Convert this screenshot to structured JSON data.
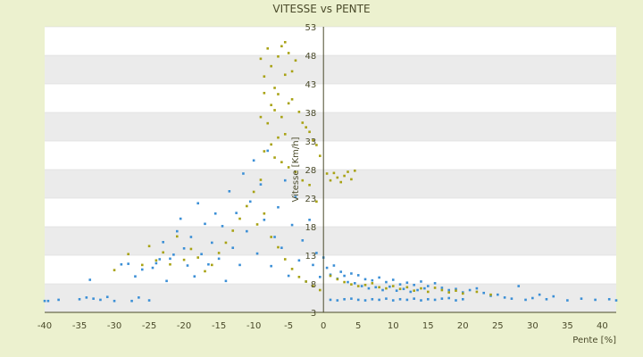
{
  "chart_data": {
    "type": "scatter",
    "title": "VITESSE vs PENTE",
    "xlabel": "Pente [%]",
    "ylabel": "Vitesse [Km/h]",
    "xlim": [
      -40,
      42
    ],
    "ylim": [
      3,
      53
    ],
    "x_ticks": [
      "-40",
      "-35",
      "-30",
      "-25",
      "-20",
      "-15",
      "-10",
      "-5",
      "0",
      "5",
      "10",
      "15",
      "20",
      "25",
      "30",
      "35",
      "40"
    ],
    "y_ticks": [
      "3",
      "8",
      "13",
      "18",
      "23",
      "28",
      "33",
      "38",
      "43",
      "48",
      "53"
    ],
    "grid": true,
    "legend": "none",
    "colors": {
      "background": "#ecf1cf",
      "plot_band_light": "#ffffff",
      "plot_band_dark": "#ebebeb",
      "axis": "#4a4a2a",
      "series_1": "#3b8fd6",
      "series_2": "#a8a214"
    },
    "series": [
      {
        "color": "#3b8fd6",
        "points": [
          [
            -40,
            5
          ],
          [
            -39.5,
            5
          ],
          [
            -38,
            5.2
          ],
          [
            -35,
            5.3
          ],
          [
            -34,
            5.6
          ],
          [
            -33.5,
            8.7
          ],
          [
            -33,
            5.4
          ],
          [
            -32,
            5.2
          ],
          [
            -31,
            5.7
          ],
          [
            -30,
            5
          ],
          [
            -29,
            11.4
          ],
          [
            -28,
            11.5
          ],
          [
            -27.5,
            5
          ],
          [
            -27,
            9.3
          ],
          [
            -26.5,
            5.6
          ],
          [
            -26,
            10.5
          ],
          [
            -25,
            5.1
          ],
          [
            -24.5,
            10.8
          ],
          [
            -24,
            11.6
          ],
          [
            -23.5,
            12.3
          ],
          [
            -23,
            15.3
          ],
          [
            -22.5,
            8.5
          ],
          [
            -22,
            12.4
          ],
          [
            -21.5,
            13.1
          ],
          [
            -21,
            17.2
          ],
          [
            -20.5,
            19.4
          ],
          [
            -20,
            14.2
          ],
          [
            -19.5,
            11.2
          ],
          [
            -19,
            16.2
          ],
          [
            -18.5,
            9.3
          ],
          [
            -18,
            22.1
          ],
          [
            -17.5,
            13.2
          ],
          [
            -17,
            18.5
          ],
          [
            -16.5,
            11.4
          ],
          [
            -16,
            15.2
          ],
          [
            -15.5,
            20.3
          ],
          [
            -15,
            12.4
          ],
          [
            -14.5,
            18.1
          ],
          [
            -14,
            8.5
          ],
          [
            -13.5,
            24.2
          ],
          [
            -13,
            14.3
          ],
          [
            -12.5,
            20.4
          ],
          [
            -12,
            11.3
          ],
          [
            -11.5,
            27.3
          ],
          [
            -11,
            17.2
          ],
          [
            -10.5,
            22.4
          ],
          [
            -10,
            29.6
          ],
          [
            -9.5,
            13.3
          ],
          [
            -9,
            25.4
          ],
          [
            -8.5,
            19.2
          ],
          [
            -8,
            31.3
          ],
          [
            -7.5,
            11.1
          ],
          [
            -7,
            16.2
          ],
          [
            -6.5,
            21.4
          ],
          [
            -6,
            14.3
          ],
          [
            -5.5,
            26.1
          ],
          [
            -5,
            9.4
          ],
          [
            -4.5,
            18.3
          ],
          [
            -4,
            23.2
          ],
          [
            -3.5,
            12.1
          ],
          [
            -3,
            15.6
          ],
          [
            -2.5,
            8.4
          ],
          [
            -2,
            19.2
          ],
          [
            -1.5,
            11.3
          ],
          [
            -1,
            13.4
          ],
          [
            -0.5,
            9.2
          ],
          [
            0,
            12.6
          ],
          [
            0.5,
            10.8
          ],
          [
            1,
            9.6
          ],
          [
            1.5,
            11.2
          ],
          [
            2,
            8.9
          ],
          [
            2.5,
            10.1
          ],
          [
            3,
            9.4
          ],
          [
            3.5,
            8.3
          ],
          [
            4,
            9.8
          ],
          [
            4.5,
            8.1
          ],
          [
            5,
            9.5
          ],
          [
            5.5,
            7.6
          ],
          [
            6,
            8.8
          ],
          [
            6.5,
            7.2
          ],
          [
            7,
            8.6
          ],
          [
            7.5,
            7.4
          ],
          [
            8,
            9.1
          ],
          [
            8.5,
            6.9
          ],
          [
            9,
            8.3
          ],
          [
            9.5,
            7.5
          ],
          [
            10,
            8.7
          ],
          [
            10.5,
            6.8
          ],
          [
            11,
            7.9
          ],
          [
            11.5,
            7.1
          ],
          [
            12,
            8.2
          ],
          [
            12.5,
            6.6
          ],
          [
            13,
            7.8
          ],
          [
            13.5,
            6.9
          ],
          [
            14,
            8.4
          ],
          [
            14.5,
            7.2
          ],
          [
            15,
            7.6
          ],
          [
            16,
            8.1
          ],
          [
            17,
            7.3
          ],
          [
            18,
            6.9
          ],
          [
            19,
            7.1
          ],
          [
            20,
            6.5
          ],
          [
            21,
            6.9
          ],
          [
            22,
            7.2
          ],
          [
            23,
            6.4
          ],
          [
            24,
            5.9
          ],
          [
            25,
            6.1
          ],
          [
            26,
            5.6
          ],
          [
            27,
            5.4
          ],
          [
            28,
            7.6
          ],
          [
            29,
            5.2
          ],
          [
            30,
            5.5
          ],
          [
            31,
            6.1
          ],
          [
            32,
            5.3
          ],
          [
            33,
            5.8
          ],
          [
            35,
            5.1
          ],
          [
            37,
            5.4
          ],
          [
            39,
            5.2
          ],
          [
            41,
            5.3
          ],
          [
            42,
            5.1
          ],
          [
            1,
            5.2
          ],
          [
            2,
            5.1
          ],
          [
            3,
            5.3
          ],
          [
            4,
            5.4
          ],
          [
            5,
            5.2
          ],
          [
            6,
            5.1
          ],
          [
            7,
            5.3
          ],
          [
            8,
            5.2
          ],
          [
            9,
            5.4
          ],
          [
            10,
            5.1
          ],
          [
            11,
            5.3
          ],
          [
            12,
            5.2
          ],
          [
            13,
            5.4
          ],
          [
            14,
            5.1
          ],
          [
            15,
            5.3
          ],
          [
            16,
            5.2
          ],
          [
            17,
            5.4
          ],
          [
            18,
            5.5
          ],
          [
            19,
            5.1
          ],
          [
            20,
            5.3
          ]
        ]
      },
      {
        "color": "#a8a214",
        "points": [
          [
            -9,
            47.4
          ],
          [
            -8.5,
            44.3
          ],
          [
            -8,
            49.2
          ],
          [
            -7.5,
            46.1
          ],
          [
            -7,
            42.3
          ],
          [
            -6.5,
            47.8
          ],
          [
            -6,
            49.6
          ],
          [
            -5.5,
            50.3
          ],
          [
            -5,
            48.4
          ],
          [
            -4.5,
            45.2
          ],
          [
            -4,
            47.1
          ],
          [
            -5.5,
            44.6
          ],
          [
            -6.5,
            41.2
          ],
          [
            -7.5,
            39.3
          ],
          [
            -8.5,
            41.4
          ],
          [
            -9,
            37.2
          ],
          [
            -8,
            36.1
          ],
          [
            -7,
            38.4
          ],
          [
            -6,
            37.2
          ],
          [
            -5,
            39.6
          ],
          [
            -4.5,
            40.3
          ],
          [
            -3.5,
            38.1
          ],
          [
            -3,
            36.2
          ],
          [
            -2.5,
            35.4
          ],
          [
            -2,
            34.6
          ],
          [
            -1.5,
            33.1
          ],
          [
            -1,
            32.3
          ],
          [
            -0.5,
            30.4
          ],
          [
            -5.5,
            34.2
          ],
          [
            -6.5,
            33.6
          ],
          [
            -7.5,
            32.4
          ],
          [
            -8.5,
            31.2
          ],
          [
            -7,
            30.1
          ],
          [
            -6,
            29.3
          ],
          [
            -5,
            28.4
          ],
          [
            -4,
            27.6
          ],
          [
            -3,
            26.1
          ],
          [
            -2,
            25.3
          ],
          [
            -1,
            22.4
          ],
          [
            -9,
            26.2
          ],
          [
            -10,
            24.1
          ],
          [
            -11,
            21.6
          ],
          [
            -12,
            19.4
          ],
          [
            -13,
            17.3
          ],
          [
            -14,
            15.2
          ],
          [
            -15,
            13.4
          ],
          [
            -16,
            11.3
          ],
          [
            -17,
            10.2
          ],
          [
            -18,
            12.6
          ],
          [
            -19,
            14.1
          ],
          [
            -20,
            12.2
          ],
          [
            -21,
            16.3
          ],
          [
            -22,
            11.4
          ],
          [
            -23,
            13.5
          ],
          [
            -24,
            12.1
          ],
          [
            -25,
            14.6
          ],
          [
            -26,
            11.3
          ],
          [
            -28,
            13.2
          ],
          [
            -30,
            10.4
          ],
          [
            -9.5,
            18.4
          ],
          [
            -8.5,
            20.3
          ],
          [
            -7.5,
            16.2
          ],
          [
            -6.5,
            14.4
          ],
          [
            -5.5,
            12.3
          ],
          [
            -4.5,
            10.6
          ],
          [
            -3.5,
            9.2
          ],
          [
            -2.5,
            8.4
          ],
          [
            -1.5,
            7.6
          ],
          [
            -0.5,
            6.9
          ],
          [
            0.5,
            27.3
          ],
          [
            1,
            26.1
          ],
          [
            1.5,
            27.4
          ],
          [
            2,
            26.6
          ],
          [
            2.5,
            25.8
          ],
          [
            3,
            26.9
          ],
          [
            3.5,
            27.6
          ],
          [
            4,
            26.3
          ],
          [
            4.5,
            27.8
          ],
          [
            1,
            9.4
          ],
          [
            2,
            8.8
          ],
          [
            3,
            8.3
          ],
          [
            4,
            7.9
          ],
          [
            5,
            7.6
          ],
          [
            6,
            7.8
          ],
          [
            7,
            8.1
          ],
          [
            8,
            7.4
          ],
          [
            9,
            7.2
          ],
          [
            10,
            7.6
          ],
          [
            11,
            7.1
          ],
          [
            12,
            7.4
          ],
          [
            13,
            6.8
          ],
          [
            14,
            7.2
          ],
          [
            15,
            6.6
          ],
          [
            16,
            7.3
          ],
          [
            17,
            6.9
          ],
          [
            18,
            6.5
          ],
          [
            19,
            6.8
          ],
          [
            20,
            6.3
          ],
          [
            22,
            6.6
          ],
          [
            24,
            6.1
          ]
        ]
      }
    ]
  }
}
